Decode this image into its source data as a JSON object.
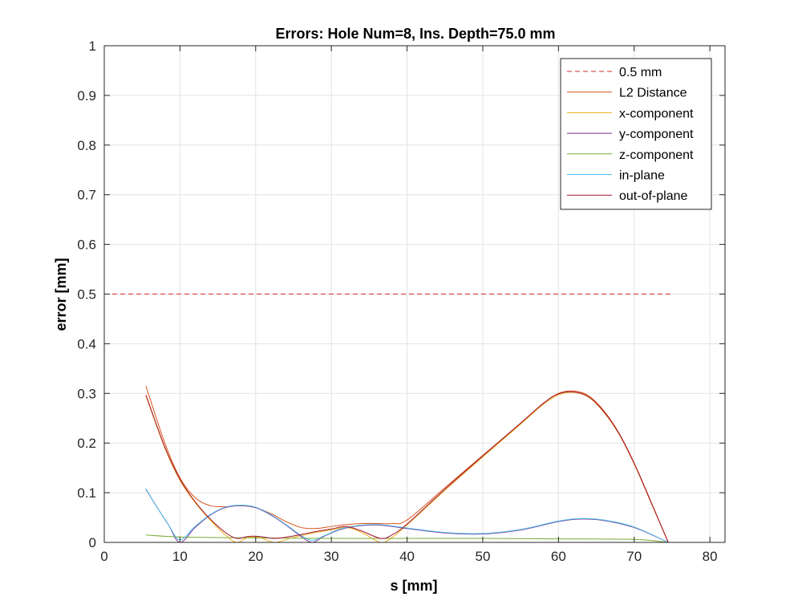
{
  "chart_data": {
    "type": "line",
    "title": "Errors: Hole Num=8, Ins. Depth=75.0 mm",
    "xlabel": "s [mm]",
    "ylabel": "error [mm]",
    "xlim": [
      0,
      82
    ],
    "ylim": [
      0,
      1
    ],
    "xticks": [
      0,
      10,
      20,
      30,
      40,
      50,
      60,
      70,
      80
    ],
    "yticks": [
      0,
      0.1,
      0.2,
      0.3,
      0.4,
      0.5,
      0.6,
      0.7,
      0.8,
      0.9,
      1
    ],
    "xtick_labels": [
      "0",
      "10",
      "20",
      "30",
      "40",
      "50",
      "60",
      "70",
      "80"
    ],
    "ytick_labels": [
      "0",
      "0.1",
      "0.2",
      "0.3",
      "0.4",
      "0.5",
      "0.6",
      "0.7",
      "0.8",
      "0.9",
      "1"
    ],
    "grid": true,
    "legend_position": "top-right",
    "series": [
      {
        "name": "0.5 mm",
        "color": "#d62728",
        "dash": true,
        "x": [
          0,
          75
        ],
        "y": [
          0.5,
          0.5
        ]
      },
      {
        "name": "L2 Distance",
        "color": "#d95319",
        "x": [
          5.5,
          8,
          10,
          12,
          14,
          16,
          18,
          20,
          22,
          24,
          26,
          28,
          30,
          32,
          34,
          36,
          38,
          40,
          45,
          50,
          55,
          58,
          60,
          62,
          64,
          66,
          68,
          70,
          72,
          74.5
        ],
        "y": [
          0.315,
          0.2,
          0.13,
          0.09,
          0.074,
          0.072,
          0.074,
          0.07,
          0.058,
          0.042,
          0.03,
          0.028,
          0.032,
          0.036,
          0.038,
          0.038,
          0.038,
          0.045,
          0.11,
          0.175,
          0.24,
          0.28,
          0.3,
          0.305,
          0.295,
          0.265,
          0.22,
          0.16,
          0.09,
          0.0
        ]
      },
      {
        "name": "x-component",
        "color": "#edb120",
        "x": [
          5.5,
          8,
          10,
          12,
          14,
          16,
          17.5,
          19,
          20.5,
          22.5,
          25,
          28,
          30,
          32,
          34,
          36.5,
          38,
          40,
          45,
          50,
          55,
          58,
          60,
          62,
          64,
          66,
          68,
          70,
          72,
          74.5
        ],
        "y": [
          0.295,
          0.19,
          0.125,
          0.08,
          0.045,
          0.015,
          0.0,
          0.01,
          0.01,
          0.0,
          0.01,
          0.02,
          0.025,
          0.03,
          0.02,
          0.0,
          0.01,
          0.035,
          0.105,
          0.172,
          0.238,
          0.278,
          0.297,
          0.302,
          0.292,
          0.262,
          0.218,
          0.158,
          0.088,
          0.0
        ]
      },
      {
        "name": "y-component",
        "color": "#7e2f8e",
        "x": [
          5.5,
          7,
          8.5,
          10,
          12,
          14,
          16,
          18,
          20,
          22,
          24,
          26,
          27.5,
          29,
          31,
          33,
          35,
          37,
          40,
          45,
          50,
          55,
          60,
          63,
          66,
          70,
          74.5
        ],
        "y": [
          0.107,
          0.07,
          0.035,
          0.0,
          0.03,
          0.055,
          0.07,
          0.074,
          0.07,
          0.055,
          0.035,
          0.012,
          0.0,
          0.012,
          0.025,
          0.032,
          0.035,
          0.034,
          0.028,
          0.019,
          0.017,
          0.025,
          0.042,
          0.047,
          0.044,
          0.03,
          0.0
        ]
      },
      {
        "name": "z-component",
        "color": "#77ac30",
        "x": [
          5.5,
          10,
          20,
          30,
          40,
          50,
          60,
          70,
          74.5
        ],
        "y": [
          0.015,
          0.011,
          0.009,
          0.008,
          0.008,
          0.008,
          0.007,
          0.006,
          0.0
        ]
      },
      {
        "name": "in-plane",
        "color": "#4dbeee",
        "x": [
          5.5,
          7,
          8.5,
          10,
          12,
          14,
          16,
          18,
          20,
          22,
          24,
          26,
          27.5,
          29,
          31,
          33,
          35,
          37,
          40,
          45,
          50,
          55,
          60,
          63,
          66,
          70,
          74.5
        ],
        "y": [
          0.108,
          0.07,
          0.035,
          0.005,
          0.032,
          0.056,
          0.071,
          0.075,
          0.071,
          0.056,
          0.036,
          0.014,
          0.004,
          0.013,
          0.026,
          0.033,
          0.036,
          0.035,
          0.029,
          0.02,
          0.018,
          0.026,
          0.043,
          0.048,
          0.045,
          0.031,
          0.0
        ]
      },
      {
        "name": "out-of-plane",
        "color": "#a2142f",
        "x": [
          5.5,
          8,
          10,
          12,
          14,
          16,
          17.5,
          19,
          20.5,
          22.5,
          25,
          28,
          30,
          32,
          34,
          36.5,
          38,
          40,
          45,
          50,
          55,
          58,
          60,
          62,
          64,
          66,
          68,
          70,
          72,
          74.5
        ],
        "y": [
          0.297,
          0.192,
          0.127,
          0.082,
          0.047,
          0.02,
          0.008,
          0.012,
          0.012,
          0.008,
          0.013,
          0.022,
          0.027,
          0.032,
          0.023,
          0.008,
          0.015,
          0.037,
          0.107,
          0.174,
          0.24,
          0.28,
          0.299,
          0.303,
          0.293,
          0.263,
          0.219,
          0.159,
          0.089,
          0.0
        ]
      }
    ]
  }
}
